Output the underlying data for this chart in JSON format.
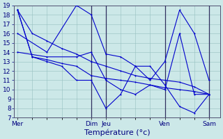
{
  "background_color": "#cce8e8",
  "grid_color": "#96c0c0",
  "line_color": "#0000cc",
  "sep_color": "#303060",
  "ylim": [
    7,
    19
  ],
  "yticks": [
    7,
    8,
    9,
    10,
    11,
    12,
    13,
    14,
    15,
    16,
    17,
    18,
    19
  ],
  "xlabel": "Température (°c)",
  "xlabel_fontsize": 8,
  "tick_fontsize": 6.5,
  "tick_color": "#000080",
  "day_labels": [
    "Mer",
    "Dim",
    "Jeu",
    "Ven",
    "Sam"
  ],
  "day_positions": [
    0,
    10,
    12,
    20,
    26
  ],
  "xlim": [
    -0.5,
    27.5
  ],
  "series": [
    {
      "x": [
        0,
        2,
        4,
        6,
        8,
        10,
        12,
        14,
        16,
        18,
        20,
        22,
        24,
        26
      ],
      "y": [
        18.5,
        16.0,
        15.2,
        14.4,
        13.8,
        13.0,
        12.5,
        12.0,
        11.5,
        11.2,
        11.0,
        10.8,
        10.3,
        9.5
      ]
    },
    {
      "x": [
        0,
        2,
        4,
        6,
        8,
        10,
        12,
        14,
        16,
        18,
        20,
        22,
        24,
        26
      ],
      "y": [
        18.5,
        13.5,
        13.2,
        12.8,
        12.5,
        11.5,
        11.2,
        11.0,
        10.8,
        10.5,
        10.2,
        10.0,
        9.8,
        9.5
      ]
    },
    {
      "x": [
        0,
        2,
        4,
        6,
        8,
        10,
        12,
        14,
        16,
        18,
        20,
        22,
        24,
        26
      ],
      "y": [
        18.5,
        13.5,
        13.0,
        12.5,
        11.0,
        11.0,
        8.0,
        9.5,
        12.5,
        12.5,
        10.5,
        8.2,
        7.5,
        9.5
      ]
    },
    {
      "x": [
        0,
        4,
        8,
        10,
        12,
        14,
        16,
        18,
        20,
        22,
        24,
        26
      ],
      "y": [
        16.0,
        14.0,
        19.0,
        18.0,
        13.8,
        13.5,
        12.5,
        11.0,
        13.0,
        18.5,
        16.0,
        11.0
      ]
    },
    {
      "x": [
        0,
        4,
        8,
        10,
        12,
        14,
        16,
        18,
        20,
        22,
        24,
        26
      ],
      "y": [
        14.0,
        13.5,
        13.5,
        14.0,
        11.0,
        10.0,
        9.5,
        10.5,
        10.0,
        16.0,
        9.5,
        9.5
      ]
    }
  ]
}
